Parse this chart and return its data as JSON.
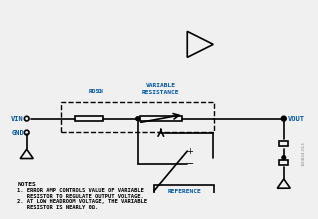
{
  "title": "",
  "bg_color": "#f0f0f0",
  "line_color": "#000000",
  "blue_color": "#0055aa",
  "orange_color": "#cc6600",
  "green_color": "#007700",
  "notes_line1": "NOTES",
  "notes_line2": "1. ERROR AMP CONTROLS VALUE OF VARIABLE",
  "notes_line3": "   RESISTOR TO REGULATE OUTPUT VOLTAGE.",
  "notes_line4": "2. AT LOW HEADROOM VOLTAGE, THE VARIABLE",
  "notes_line5": "   RESISTOR IS NEARLY 0Ω.",
  "label_vin": "VIN",
  "label_gnd": "GND",
  "label_vout": "VOUT",
  "label_rds": "RDS",
  "label_on": "ON",
  "label_variable": "VARIABLE",
  "label_resistance": "RESISTANCE",
  "label_reference": "REFERENCE",
  "label_minus": "−",
  "label_plus": "+"
}
